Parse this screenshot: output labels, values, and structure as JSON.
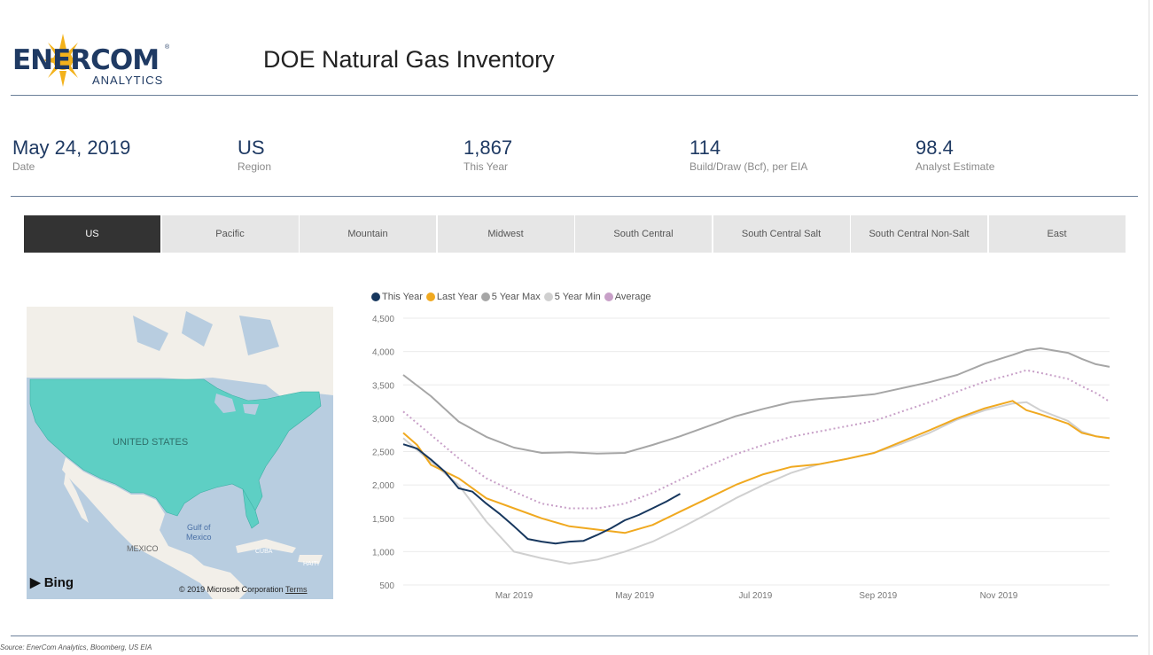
{
  "brand": {
    "name": "ENERCOM",
    "sub": "ANALYTICS",
    "reg": "®"
  },
  "title": "DOE Natural Gas Inventory",
  "kpis": [
    {
      "value": "May 24, 2019",
      "label": "Date"
    },
    {
      "value": "US",
      "label": "Region"
    },
    {
      "value": "1,867",
      "label": "This Year"
    },
    {
      "value": "114",
      "label": "Build/Draw (Bcf), per EIA"
    },
    {
      "value": "98.4",
      "label": "Analyst Estimate"
    }
  ],
  "tabs": [
    {
      "label": "US",
      "active": true
    },
    {
      "label": "Pacific",
      "active": false
    },
    {
      "label": "Mountain",
      "active": false
    },
    {
      "label": "Midwest",
      "active": false
    },
    {
      "label": "South Central",
      "active": false
    },
    {
      "label": "South Central Salt",
      "active": false
    },
    {
      "label": "South Central Non-Salt",
      "active": false
    },
    {
      "label": "East",
      "active": false
    }
  ],
  "map": {
    "labels": {
      "us": "UNITED STATES",
      "mexico": "MEXICO",
      "gulf_line1": "Gulf of",
      "gulf_line2": "Mexico",
      "cuba": "CUBA",
      "haiti": "HAITI"
    },
    "bing": "Bing",
    "copyright": "© 2019 Microsoft Corporation",
    "terms": "Terms",
    "colors": {
      "water": "#b8cde0",
      "land": "#f2efe9",
      "highlight": "#5ecfc4"
    }
  },
  "chart_data": {
    "type": "line",
    "title": "",
    "xlabel": "",
    "ylabel": "",
    "ylim": [
      500,
      4500
    ],
    "yticks": [
      500,
      1000,
      1500,
      2000,
      2500,
      3000,
      3500,
      4000,
      4500
    ],
    "ytick_labels": [
      "500",
      "1,000",
      "1,500",
      "2,000",
      "2,500",
      "3,000",
      "3,500",
      "4,000",
      "4,500"
    ],
    "xlim": [
      "2019-01-04",
      "2019-12-27"
    ],
    "xticks": [
      "2019-03-01",
      "2019-05-01",
      "2019-07-01",
      "2019-09-01",
      "2019-11-01"
    ],
    "xtick_labels": [
      "Mar 2019",
      "May 2019",
      "Jul 2019",
      "Sep 2019",
      "Nov 2019"
    ],
    "legend_position": "top-left",
    "grid": true,
    "series": [
      {
        "name": "This Year",
        "color": "#17375e",
        "style": "solid",
        "x": [
          "2019-01-04",
          "2019-01-11",
          "2019-01-18",
          "2019-01-25",
          "2019-02-01",
          "2019-02-08",
          "2019-02-15",
          "2019-02-22",
          "2019-03-01",
          "2019-03-08",
          "2019-03-15",
          "2019-03-22",
          "2019-03-29",
          "2019-04-05",
          "2019-04-12",
          "2019-04-19",
          "2019-04-26",
          "2019-05-03",
          "2019-05-10",
          "2019-05-17",
          "2019-05-24"
        ],
        "values": [
          2610,
          2545,
          2380,
          2200,
          1950,
          1900,
          1720,
          1560,
          1380,
          1190,
          1150,
          1120,
          1150,
          1160,
          1250,
          1350,
          1470,
          1550,
          1650,
          1750,
          1867
        ]
      },
      {
        "name": "Last Year",
        "color": "#f0a920",
        "style": "solid",
        "x": [
          "2019-01-04",
          "2019-01-11",
          "2019-01-18",
          "2019-02-01",
          "2019-02-15",
          "2019-03-01",
          "2019-03-15",
          "2019-03-29",
          "2019-04-12",
          "2019-04-26",
          "2019-05-10",
          "2019-05-24",
          "2019-06-07",
          "2019-06-21",
          "2019-07-05",
          "2019-07-19",
          "2019-08-02",
          "2019-08-16",
          "2019-08-30",
          "2019-09-13",
          "2019-09-27",
          "2019-10-11",
          "2019-10-25",
          "2019-11-08",
          "2019-11-15",
          "2019-11-22",
          "2019-12-06",
          "2019-12-13",
          "2019-12-20",
          "2019-12-27"
        ],
        "values": [
          2780,
          2600,
          2300,
          2100,
          1800,
          1650,
          1500,
          1380,
          1330,
          1280,
          1400,
          1600,
          1800,
          2000,
          2160,
          2270,
          2310,
          2390,
          2480,
          2650,
          2820,
          3000,
          3150,
          3260,
          3120,
          3060,
          2920,
          2780,
          2730,
          2700
        ]
      },
      {
        "name": "5 Year Max",
        "color": "#a6a6a6",
        "style": "solid",
        "x": [
          "2019-01-04",
          "2019-01-18",
          "2019-02-01",
          "2019-02-15",
          "2019-03-01",
          "2019-03-15",
          "2019-03-29",
          "2019-04-12",
          "2019-04-26",
          "2019-05-10",
          "2019-05-24",
          "2019-06-07",
          "2019-06-21",
          "2019-07-05",
          "2019-07-19",
          "2019-08-02",
          "2019-08-16",
          "2019-08-30",
          "2019-09-13",
          "2019-09-27",
          "2019-10-11",
          "2019-10-25",
          "2019-11-08",
          "2019-11-15",
          "2019-11-22",
          "2019-12-06",
          "2019-12-13",
          "2019-12-20",
          "2019-12-27"
        ],
        "values": [
          3650,
          3330,
          2950,
          2720,
          2560,
          2480,
          2490,
          2470,
          2480,
          2600,
          2730,
          2880,
          3030,
          3140,
          3240,
          3290,
          3320,
          3360,
          3450,
          3540,
          3650,
          3820,
          3950,
          4020,
          4050,
          3980,
          3890,
          3810,
          3770
        ]
      },
      {
        "name": "5 Year Min",
        "color": "#d0d0d0",
        "style": "solid",
        "x": [
          "2019-01-04",
          "2019-01-18",
          "2019-02-01",
          "2019-02-15",
          "2019-03-01",
          "2019-03-15",
          "2019-03-29",
          "2019-04-12",
          "2019-04-26",
          "2019-05-10",
          "2019-05-24",
          "2019-06-07",
          "2019-06-21",
          "2019-07-05",
          "2019-07-19",
          "2019-08-02",
          "2019-08-16",
          "2019-08-30",
          "2019-09-13",
          "2019-09-27",
          "2019-10-11",
          "2019-10-25",
          "2019-11-08",
          "2019-11-15",
          "2019-11-22",
          "2019-12-06",
          "2019-12-13",
          "2019-12-20",
          "2019-12-27"
        ],
        "values": [
          2700,
          2350,
          2000,
          1450,
          1000,
          900,
          820,
          880,
          1000,
          1150,
          1350,
          1570,
          1800,
          2000,
          2180,
          2310,
          2390,
          2480,
          2620,
          2780,
          2980,
          3120,
          3220,
          3240,
          3120,
          2960,
          2800,
          2730,
          2700
        ]
      },
      {
        "name": "Average",
        "color": "#c8a0c8",
        "style": "dotted",
        "x": [
          "2019-01-04",
          "2019-01-18",
          "2019-02-01",
          "2019-02-15",
          "2019-03-01",
          "2019-03-15",
          "2019-03-29",
          "2019-04-12",
          "2019-04-26",
          "2019-05-10",
          "2019-05-24",
          "2019-06-07",
          "2019-06-21",
          "2019-07-05",
          "2019-07-19",
          "2019-08-02",
          "2019-08-16",
          "2019-08-30",
          "2019-09-13",
          "2019-09-27",
          "2019-10-11",
          "2019-10-25",
          "2019-11-08",
          "2019-11-15",
          "2019-11-22",
          "2019-12-06",
          "2019-12-13",
          "2019-12-20",
          "2019-12-27"
        ],
        "values": [
          3100,
          2750,
          2400,
          2100,
          1900,
          1720,
          1650,
          1650,
          1720,
          1880,
          2080,
          2280,
          2460,
          2600,
          2720,
          2800,
          2880,
          2960,
          3100,
          3240,
          3400,
          3550,
          3660,
          3720,
          3680,
          3590,
          3480,
          3380,
          3250
        ]
      }
    ]
  },
  "source": "Source: EnerCom Analytics, Bloomberg, US EIA"
}
